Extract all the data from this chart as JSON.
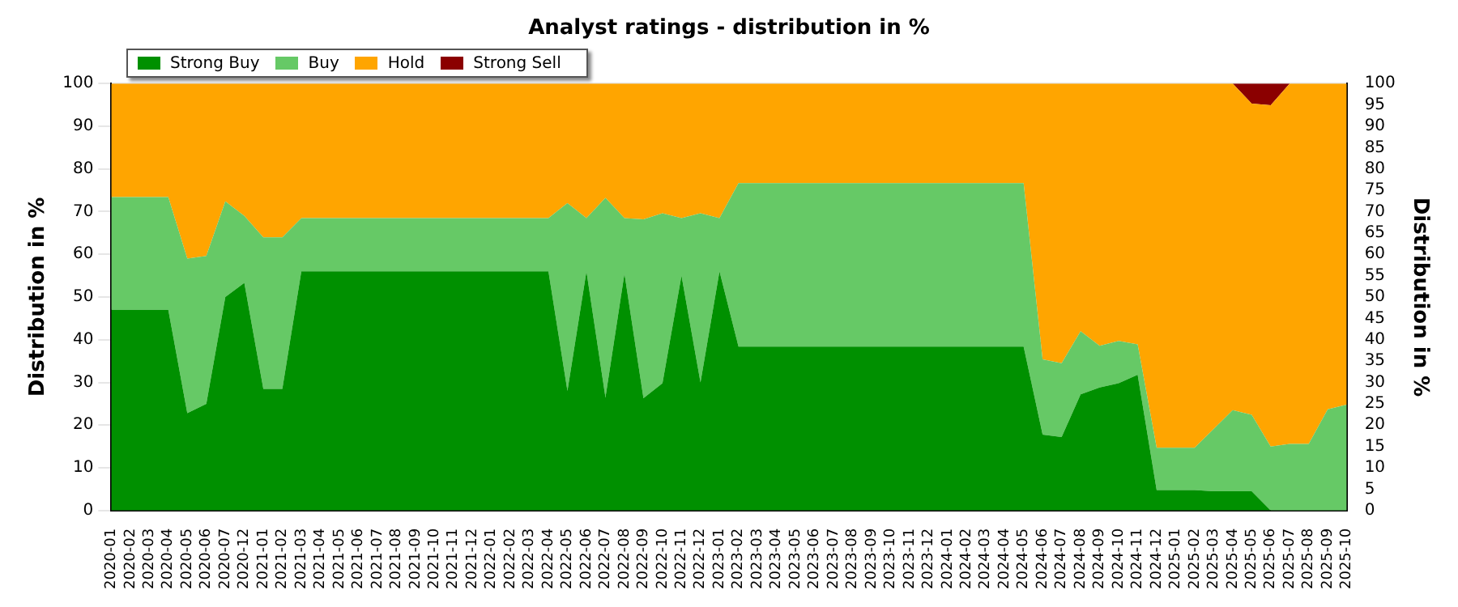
{
  "chart_data": {
    "type": "area",
    "title": "Analyst ratings - distribution in %",
    "ylabel": "Distribution in %",
    "y2label": "Distribution in %",
    "stacked": true,
    "grid": "y",
    "legend": "top left",
    "categories": [
      "2020-01",
      "2020-02",
      "2020-03",
      "2020-04",
      "2020-05",
      "2020-06",
      "2020-07",
      "2020-12",
      "2021-01",
      "2021-02",
      "2021-03",
      "2021-04",
      "2021-05",
      "2021-06",
      "2021-07",
      "2021-08",
      "2021-09",
      "2021-10",
      "2021-11",
      "2021-12",
      "2022-01",
      "2022-02",
      "2022-03",
      "2022-04",
      "2022-05",
      "2022-06",
      "2022-07",
      "2022-08",
      "2022-09",
      "2022-10",
      "2022-11",
      "2022-12",
      "2023-01",
      "2023-02",
      "2023-03",
      "2023-04",
      "2023-05",
      "2023-06",
      "2023-07",
      "2023-08",
      "2023-09",
      "2023-10",
      "2023-11",
      "2023-12",
      "2024-01",
      "2024-02",
      "2024-03",
      "2024-04",
      "2024-05",
      "2024-06",
      "2024-07",
      "2024-08",
      "2024-09",
      "2024-10",
      "2024-11",
      "2024-12",
      "2025-01",
      "2025-02",
      "2025-03",
      "2025-04",
      "2025-05",
      "2025-06",
      "2025-07",
      "2025-08",
      "2025-09",
      "2025-10"
    ],
    "ylim": [
      0,
      100
    ],
    "yticks": [
      0,
      10,
      20,
      30,
      40,
      50,
      60,
      70,
      80,
      90,
      100
    ],
    "y2lim": [
      0,
      100
    ],
    "y2ticks": [
      0,
      5,
      10,
      15,
      20,
      25,
      30,
      35,
      40,
      45,
      50,
      55,
      60,
      65,
      70,
      75,
      80,
      85,
      90,
      95,
      100
    ],
    "series": [
      {
        "name": "Strong Buy",
        "color": "#009000",
        "values": [
          47,
          47,
          47,
          47,
          22.8,
          25,
          50,
          53.3,
          28.5,
          28.5,
          56,
          56,
          56,
          56,
          56,
          56,
          56,
          56,
          56,
          56,
          56,
          56,
          56,
          56,
          28,
          56,
          26.5,
          55.5,
          26.3,
          29.8,
          55,
          30,
          56,
          38.4,
          38.4,
          38.4,
          38.4,
          38.4,
          38.4,
          38.4,
          38.4,
          38.4,
          38.4,
          38.4,
          38.4,
          38.4,
          38.4,
          38.4,
          38.4,
          17.8,
          17.2,
          27.2,
          28.8,
          29.8,
          31.8,
          4.8,
          4.8,
          4.8,
          4.5,
          4.5,
          4.5,
          0,
          0,
          0,
          0,
          0
        ]
      },
      {
        "name": "Buy",
        "color": "#66c966",
        "values": [
          26.4,
          26.4,
          26.4,
          26.4,
          36.2,
          34.6,
          22.4,
          15.7,
          35.5,
          35.5,
          12.5,
          12.5,
          12.5,
          12.5,
          12.5,
          12.5,
          12.5,
          12.5,
          12.5,
          12.5,
          12.5,
          12.5,
          12.5,
          12.5,
          44,
          12.5,
          46.7,
          13,
          41.9,
          39.8,
          13.5,
          39.6,
          12.5,
          38.3,
          38.3,
          38.3,
          38.3,
          38.3,
          38.3,
          38.3,
          38.3,
          38.3,
          38.3,
          38.3,
          38.3,
          38.3,
          38.3,
          38.3,
          38.3,
          17.6,
          17.3,
          14.8,
          9.8,
          9.9,
          7.1,
          9.9,
          9.9,
          9.9,
          14.6,
          19,
          17.9,
          15,
          15.6,
          15.6,
          23.7,
          24.8
        ]
      },
      {
        "name": "Hold",
        "color": "#ffa500",
        "values": [
          26.6,
          26.6,
          26.6,
          26.6,
          41,
          40.4,
          27.6,
          31,
          36,
          36,
          31.5,
          31.5,
          31.5,
          31.5,
          31.5,
          31.5,
          31.5,
          31.5,
          31.5,
          31.5,
          31.5,
          31.5,
          31.5,
          31.5,
          28,
          31.5,
          26.8,
          31.5,
          31.8,
          30.4,
          31.5,
          30.4,
          31.5,
          23.3,
          23.3,
          23.3,
          23.3,
          23.3,
          23.3,
          23.3,
          23.3,
          23.3,
          23.3,
          23.3,
          23.3,
          23.3,
          23.3,
          23.3,
          23.3,
          64.6,
          65.5,
          58,
          61.4,
          60.3,
          61.1,
          85.3,
          85.3,
          85.3,
          80.9,
          76.5,
          72.9,
          79.9,
          84.4,
          84.4,
          76.3,
          75.2
        ]
      },
      {
        "name": "Strong Sell",
        "color": "#8b0000",
        "values": [
          0,
          0,
          0,
          0,
          0,
          0,
          0,
          0,
          0,
          0,
          0,
          0,
          0,
          0,
          0,
          0,
          0,
          0,
          0,
          0,
          0,
          0,
          0,
          0,
          0,
          0,
          0,
          0,
          0,
          0,
          0,
          0,
          0,
          0,
          0,
          0,
          0,
          0,
          0,
          0,
          0,
          0,
          0,
          0,
          0,
          0,
          0,
          0,
          0,
          0,
          0,
          0,
          0,
          0,
          0,
          0,
          0,
          0,
          0,
          0,
          4.7,
          5.1,
          0,
          0,
          0,
          0
        ]
      }
    ]
  }
}
